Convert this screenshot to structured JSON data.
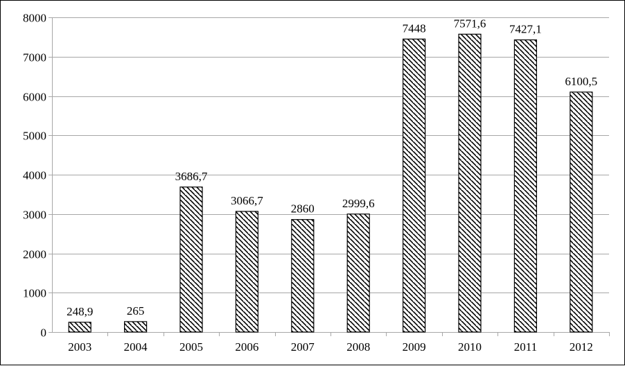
{
  "chart_data": {
    "type": "bar",
    "title": "",
    "xlabel": "",
    "ylabel": "",
    "categories": [
      "2003",
      "2004",
      "2005",
      "2006",
      "2007",
      "2008",
      "2009",
      "2010",
      "2011",
      "2012"
    ],
    "values": [
      248.9,
      265,
      3686.7,
      3066.7,
      2860,
      2999.6,
      7448,
      7571.6,
      7427.1,
      6100.5
    ],
    "data_labels": [
      "248,9",
      "265",
      "3686,7",
      "3066,7",
      "2860",
      "2999,6",
      "7448",
      "7571,6",
      "7427,1",
      "6100,5"
    ],
    "ylim": [
      0,
      8000
    ],
    "yticks": [
      0,
      1000,
      2000,
      3000,
      4000,
      5000,
      6000,
      7000,
      8000
    ],
    "grid": true,
    "legend": "none",
    "bar_fill": "diagonal-hatch",
    "colors": {
      "bar_stroke": "#000000",
      "gridline": "#a6a6a6",
      "axis": "#a6a6a6"
    }
  }
}
